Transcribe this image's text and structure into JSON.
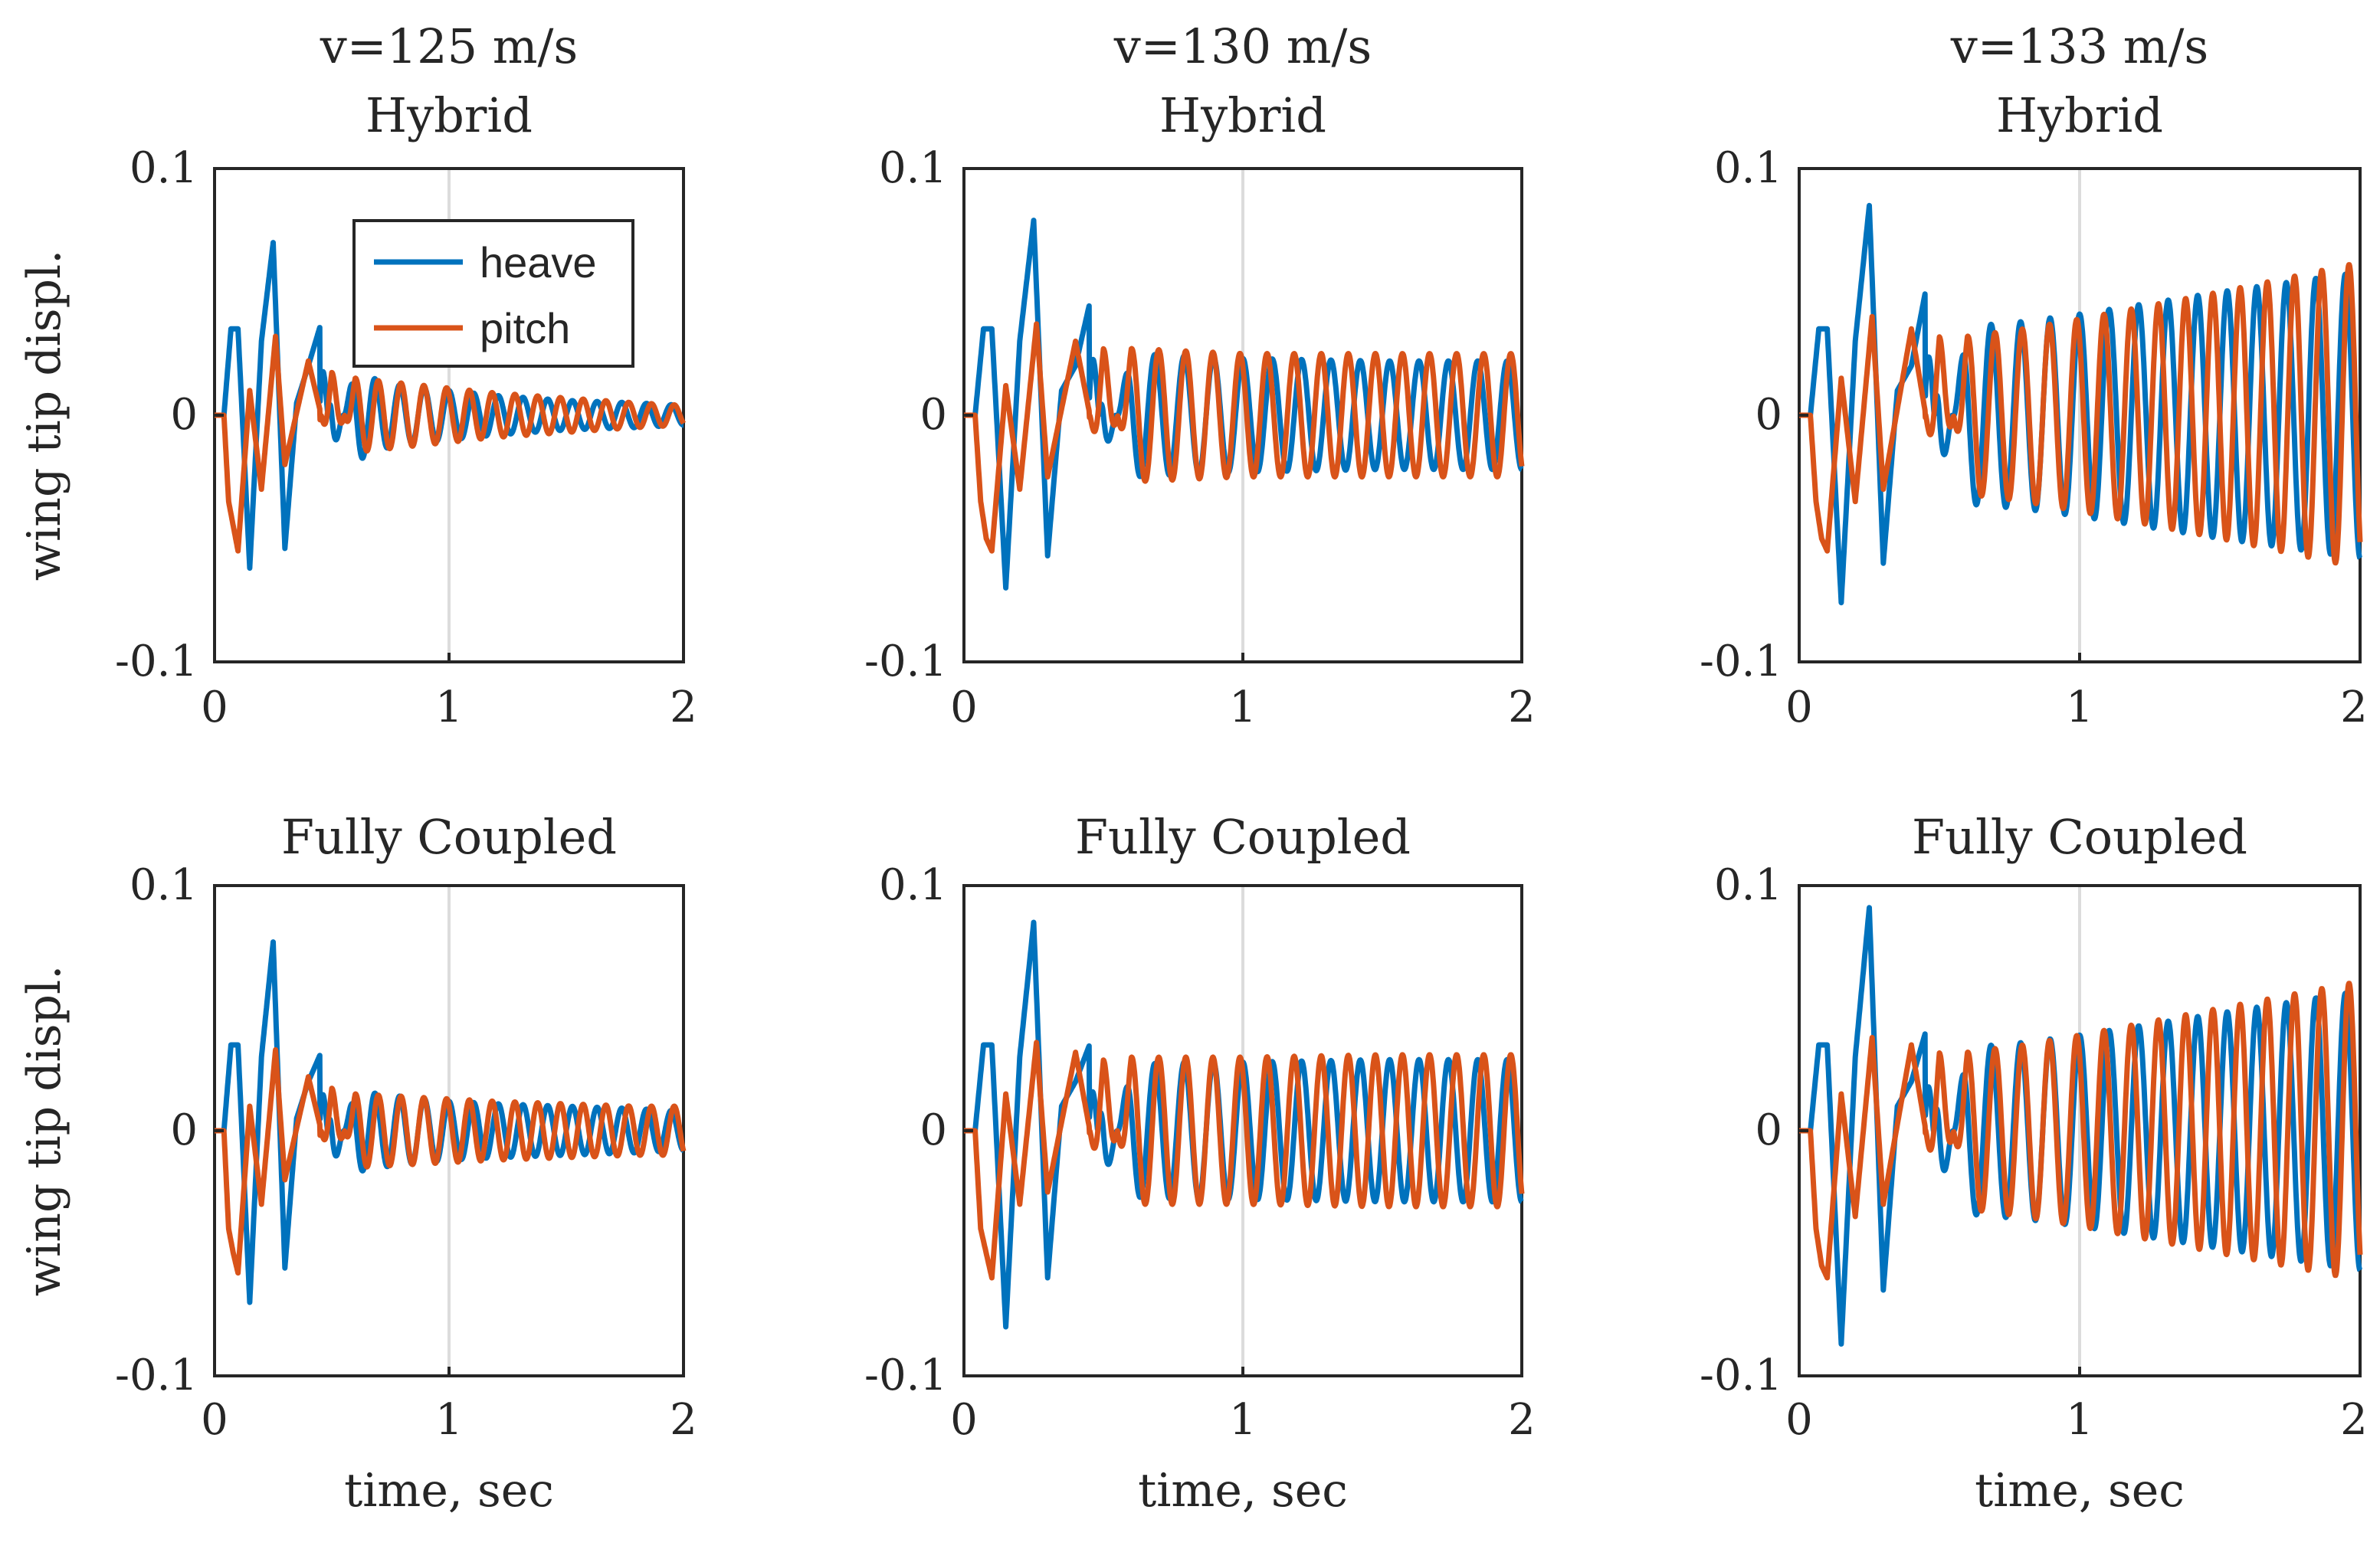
{
  "chart_data": [
    {
      "type": "line",
      "title": [
        "v=125 m/s",
        "Hybrid"
      ],
      "xlabel": "",
      "ylabel": "wing tip displ.",
      "xlim": [
        0,
        2
      ],
      "ylim": [
        -0.1,
        0.1
      ],
      "xticks": [
        "0",
        "1",
        "2"
      ],
      "yticks": [
        "-0.1",
        "0",
        "0.1"
      ],
      "grid": "x",
      "legend": {
        "location": "top-right",
        "entries": [
          "heave",
          "pitch"
        ]
      },
      "series": [
        {
          "name": "heave",
          "color": "#0072BD",
          "x": [
            0,
            0.04,
            0.07,
            0.1,
            0.15,
            0.2,
            0.25,
            0.3,
            0.35,
            0.4,
            0.45,
            0.5,
            0.6,
            0.7,
            0.8,
            1.0,
            1.2,
            1.5,
            1.8,
            2.0
          ],
          "envelope": [
            0,
            0,
            0.035,
            0.035,
            -0.062,
            0.03,
            0.07,
            -0.054,
            0.005,
            0.02,
            0.036,
            -0.018,
            0.019,
            0.014,
            0.012,
            0.01,
            0.008,
            0.006,
            0.005,
            0.004
          ]
        },
        {
          "name": "pitch",
          "color": "#D95319",
          "x": [
            0,
            0.04,
            0.06,
            0.08,
            0.1,
            0.15,
            0.2,
            0.26,
            0.3,
            0.4,
            0.5,
            0.6,
            0.8,
            1.0,
            1.2,
            1.5,
            1.8,
            2.0
          ],
          "envelope": [
            0,
            0,
            -0.035,
            -0.045,
            -0.055,
            0.01,
            -0.03,
            0.032,
            -0.02,
            0.022,
            -0.018,
            0.015,
            0.013,
            0.011,
            0.009,
            0.007,
            0.005,
            0.004
          ]
        }
      ]
    },
    {
      "type": "line",
      "title": [
        "v=130 m/s",
        "Hybrid"
      ],
      "xlabel": "",
      "ylabel": "",
      "xlim": [
        0,
        2
      ],
      "ylim": [
        -0.1,
        0.1
      ],
      "xticks": [
        "0",
        "1",
        "2"
      ],
      "yticks": [
        "-0.1",
        "0",
        "0.1"
      ],
      "grid": "x",
      "series": [
        {
          "name": "heave",
          "color": "#0072BD",
          "x": [
            0,
            0.04,
            0.07,
            0.1,
            0.15,
            0.2,
            0.25,
            0.3,
            0.35,
            0.4,
            0.45,
            0.5,
            0.6,
            0.8,
            1.0,
            1.5,
            2.0
          ],
          "envelope": [
            0,
            0,
            0.035,
            0.035,
            -0.07,
            0.03,
            0.079,
            -0.057,
            0.01,
            0.02,
            0.045,
            -0.02,
            0.025,
            0.024,
            0.023,
            0.022,
            0.022
          ]
        },
        {
          "name": "pitch",
          "color": "#D95319",
          "x": [
            0,
            0.04,
            0.06,
            0.08,
            0.1,
            0.15,
            0.2,
            0.26,
            0.3,
            0.4,
            0.5,
            0.6,
            0.8,
            1.0,
            1.5,
            2.0
          ],
          "envelope": [
            0,
            0,
            -0.035,
            -0.05,
            -0.055,
            0.012,
            -0.03,
            0.037,
            -0.025,
            0.03,
            -0.028,
            0.027,
            0.026,
            0.025,
            0.025,
            0.025
          ]
        }
      ]
    },
    {
      "type": "line",
      "title": [
        "v=133 m/s",
        "Hybrid"
      ],
      "xlabel": "",
      "ylabel": "",
      "xlim": [
        0,
        2
      ],
      "ylim": [
        -0.1,
        0.1
      ],
      "xticks": [
        "0",
        "1",
        "2"
      ],
      "yticks": [
        "-0.1",
        "0",
        "0.1"
      ],
      "grid": "x",
      "series": [
        {
          "name": "heave",
          "color": "#0072BD",
          "x": [
            0,
            0.04,
            0.07,
            0.1,
            0.15,
            0.2,
            0.25,
            0.3,
            0.35,
            0.4,
            0.45,
            0.5,
            0.6,
            0.8,
            1.0,
            1.5,
            2.0
          ],
          "envelope": [
            0,
            0,
            0.035,
            0.035,
            -0.076,
            0.03,
            0.085,
            -0.06,
            0.01,
            0.02,
            0.05,
            -0.03,
            0.036,
            0.038,
            0.041,
            0.05,
            0.058
          ]
        },
        {
          "name": "pitch",
          "color": "#D95319",
          "x": [
            0,
            0.04,
            0.06,
            0.08,
            0.1,
            0.15,
            0.2,
            0.26,
            0.3,
            0.4,
            0.5,
            0.6,
            0.8,
            1.0,
            1.5,
            2.0
          ],
          "envelope": [
            0,
            0,
            -0.035,
            -0.05,
            -0.055,
            0.015,
            -0.035,
            0.04,
            -0.03,
            0.035,
            -0.033,
            0.032,
            0.035,
            0.039,
            0.05,
            0.062
          ]
        }
      ]
    },
    {
      "type": "line",
      "title": [
        "Fully Coupled"
      ],
      "xlabel": "time, sec",
      "ylabel": "wing tip displ.",
      "xlim": [
        0,
        2
      ],
      "ylim": [
        -0.1,
        0.1
      ],
      "xticks": [
        "0",
        "1",
        "2"
      ],
      "yticks": [
        "-0.1",
        "0",
        "0.1"
      ],
      "grid": "x",
      "series": [
        {
          "name": "heave",
          "color": "#0072BD",
          "x": [
            0,
            0.04,
            0.07,
            0.1,
            0.15,
            0.2,
            0.25,
            0.3,
            0.35,
            0.4,
            0.45,
            0.5,
            0.6,
            0.7,
            0.8,
            1.0,
            1.2,
            1.5,
            1.8,
            2.0
          ],
          "envelope": [
            0,
            0,
            0.035,
            0.035,
            -0.07,
            0.03,
            0.077,
            -0.056,
            0.005,
            0.02,
            0.031,
            -0.018,
            0.017,
            0.015,
            0.014,
            0.012,
            0.011,
            0.01,
            0.009,
            0.008
          ]
        },
        {
          "name": "pitch",
          "color": "#D95319",
          "x": [
            0,
            0.04,
            0.06,
            0.08,
            0.1,
            0.15,
            0.2,
            0.26,
            0.3,
            0.4,
            0.5,
            0.6,
            0.8,
            1.0,
            1.2,
            1.5,
            1.8,
            2.0
          ],
          "envelope": [
            0,
            0,
            -0.04,
            -0.05,
            -0.058,
            0.01,
            -0.03,
            0.033,
            -0.02,
            0.022,
            -0.018,
            0.015,
            0.014,
            0.013,
            0.012,
            0.011,
            0.01,
            0.01
          ]
        }
      ]
    },
    {
      "type": "line",
      "title": [
        "Fully Coupled"
      ],
      "xlabel": "time, sec",
      "ylabel": "",
      "xlim": [
        0,
        2
      ],
      "ylim": [
        -0.1,
        0.1
      ],
      "xticks": [
        "0",
        "1",
        "2"
      ],
      "yticks": [
        "-0.1",
        "0",
        "0.1"
      ],
      "grid": "x",
      "series": [
        {
          "name": "heave",
          "color": "#0072BD",
          "x": [
            0,
            0.04,
            0.07,
            0.1,
            0.15,
            0.2,
            0.25,
            0.3,
            0.35,
            0.4,
            0.45,
            0.5,
            0.6,
            0.8,
            1.0,
            1.5,
            2.0
          ],
          "envelope": [
            0,
            0,
            0.035,
            0.035,
            -0.08,
            0.03,
            0.085,
            -0.06,
            0.01,
            0.02,
            0.035,
            -0.025,
            0.027,
            0.028,
            0.028,
            0.029,
            0.029
          ]
        },
        {
          "name": "pitch",
          "color": "#D95319",
          "x": [
            0,
            0.04,
            0.06,
            0.08,
            0.1,
            0.15,
            0.2,
            0.26,
            0.3,
            0.4,
            0.5,
            0.6,
            0.8,
            1.0,
            1.5,
            2.0
          ],
          "envelope": [
            0,
            0,
            -0.04,
            -0.05,
            -0.06,
            0.015,
            -0.03,
            0.036,
            -0.025,
            0.032,
            -0.03,
            0.03,
            0.03,
            0.03,
            0.031,
            0.031
          ]
        }
      ]
    },
    {
      "type": "line",
      "title": [
        "Fully Coupled"
      ],
      "xlabel": "time, sec",
      "ylabel": "",
      "xlim": [
        0,
        2
      ],
      "ylim": [
        -0.1,
        0.1
      ],
      "xticks": [
        "0",
        "1",
        "2"
      ],
      "yticks": [
        "-0.1",
        "0",
        "0.1"
      ],
      "grid": "x",
      "series": [
        {
          "name": "heave",
          "color": "#0072BD",
          "x": [
            0,
            0.04,
            0.07,
            0.1,
            0.15,
            0.2,
            0.25,
            0.3,
            0.35,
            0.4,
            0.45,
            0.5,
            0.6,
            0.8,
            1.0,
            1.5,
            2.0
          ],
          "envelope": [
            0,
            0,
            0.035,
            0.035,
            -0.087,
            0.03,
            0.091,
            -0.065,
            0.01,
            0.02,
            0.04,
            -0.03,
            0.034,
            0.036,
            0.039,
            0.048,
            0.057
          ]
        },
        {
          "name": "pitch",
          "color": "#D95319",
          "x": [
            0,
            0.04,
            0.06,
            0.08,
            0.1,
            0.15,
            0.2,
            0.26,
            0.3,
            0.4,
            0.5,
            0.6,
            0.8,
            1.0,
            1.5,
            2.0
          ],
          "envelope": [
            0,
            0,
            -0.04,
            -0.055,
            -0.06,
            0.015,
            -0.035,
            0.038,
            -0.03,
            0.035,
            -0.033,
            0.032,
            0.035,
            0.039,
            0.05,
            0.061
          ]
        }
      ]
    }
  ]
}
